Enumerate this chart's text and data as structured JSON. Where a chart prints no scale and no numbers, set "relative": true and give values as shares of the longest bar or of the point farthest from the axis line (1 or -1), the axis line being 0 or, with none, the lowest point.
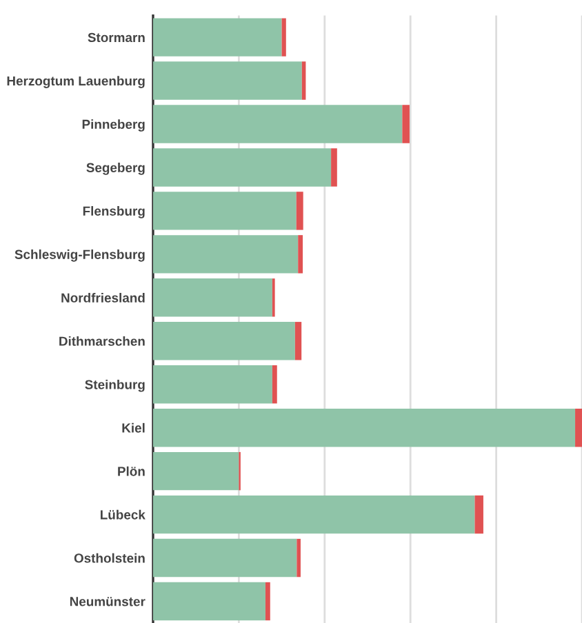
{
  "chart_data": {
    "type": "bar",
    "orientation": "horizontal",
    "stacked": true,
    "relative": true,
    "grid": "x",
    "legend": false,
    "categories": [
      "Stormarn",
      "Herzogtum Lauenburg",
      "Pinneberg",
      "Segeberg",
      "Flensburg",
      "Schleswig-Flensburg",
      "Nordfriesland",
      "Dithmarschen",
      "Steinburg",
      "Kiel",
      "Plön",
      "Lübeck",
      "Ostholstein",
      "Neumünster"
    ],
    "series": [
      {
        "color": "#8fc4a8",
        "values": [
          0.3,
          0.347,
          0.581,
          0.415,
          0.334,
          0.338,
          0.278,
          0.331,
          0.278,
          0.984,
          0.2,
          0.75,
          0.335,
          0.262
        ]
      },
      {
        "color": "#e05252",
        "values": [
          0.01,
          0.009,
          0.017,
          0.014,
          0.016,
          0.011,
          0.006,
          0.015,
          0.011,
          0.016,
          0.004,
          0.02,
          0.009,
          0.011
        ]
      }
    ]
  }
}
